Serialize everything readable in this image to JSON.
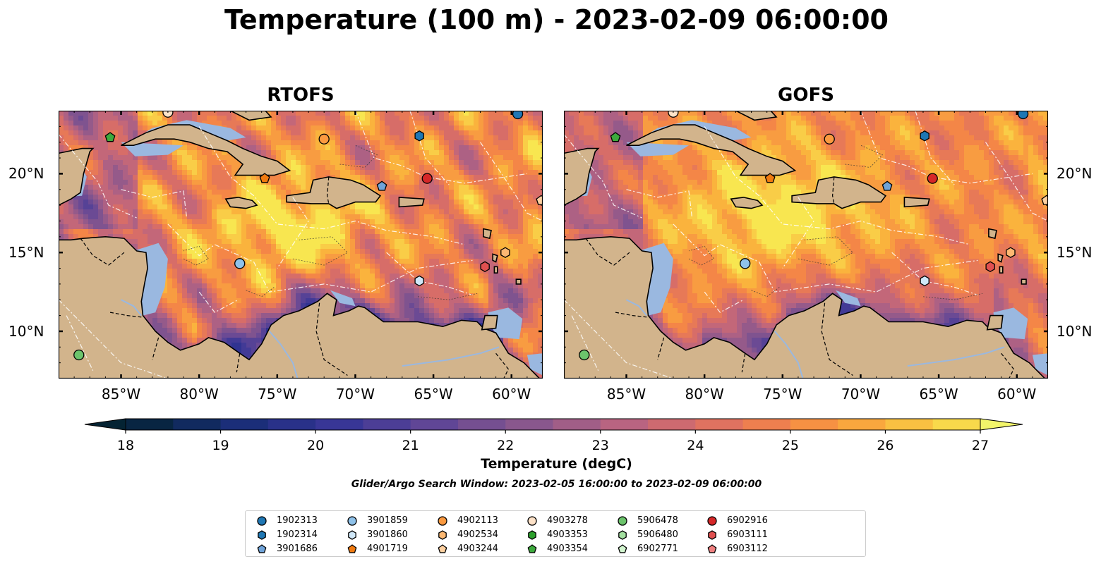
{
  "title": "Temperature (100 m) - 2023-02-09 06:00:00",
  "panels": [
    {
      "id": "rtofs",
      "title": "RTOFS"
    },
    {
      "id": "gofs",
      "title": "GOFS"
    }
  ],
  "map": {
    "lon_range": [
      -89,
      -58
    ],
    "lat_range": [
      7,
      24
    ],
    "lon_ticks": [
      "85°W",
      "80°W",
      "75°W",
      "70°W",
      "65°W",
      "60°W"
    ],
    "lat_ticks": [
      "20°N",
      "15°N",
      "10°N"
    ],
    "colors": {
      "land": "#d2b48c",
      "shallow_water": "#9ab8e0",
      "deep_water": "#0a2535",
      "coast": "#000000"
    }
  },
  "colorbar": {
    "label": "Temperature (degC)",
    "min": 18,
    "max": 27,
    "step": 0.5,
    "ticks": [
      "18",
      "19",
      "20",
      "21",
      "22",
      "23",
      "24",
      "25",
      "26",
      "27"
    ],
    "extend": "both",
    "colormap": "thermal"
  },
  "search_window": "Glider/Argo Search Window: 2023-02-05 16:00:00 to 2023-02-09 06:00:00",
  "legend": {
    "entries": [
      {
        "label": "1902313",
        "marker": "circle",
        "color": "#1f77b4"
      },
      {
        "label": "1902314",
        "marker": "hexagon",
        "color": "#1f77b4"
      },
      {
        "label": "3901686",
        "marker": "pentagon",
        "color": "#6fa3d9"
      },
      {
        "label": "3901859",
        "marker": "circle",
        "color": "#8fc2ea"
      },
      {
        "label": "3901860",
        "marker": "hexagon",
        "color": "#cfe7f8"
      },
      {
        "label": "4901719",
        "marker": "pentagon",
        "color": "#f07a10"
      },
      {
        "label": "4902113",
        "marker": "circle",
        "color": "#fb9a40"
      },
      {
        "label": "4902534",
        "marker": "hexagon",
        "color": "#fdb872"
      },
      {
        "label": "4903244",
        "marker": "pentagon",
        "color": "#fed0a0"
      },
      {
        "label": "4903278",
        "marker": "circle",
        "color": "#fde2c8"
      },
      {
        "label": "4903353",
        "marker": "hexagon",
        "color": "#2ca02c"
      },
      {
        "label": "4903354",
        "marker": "pentagon",
        "color": "#3daa3d"
      },
      {
        "label": "5906478",
        "marker": "circle",
        "color": "#6cc46c"
      },
      {
        "label": "5906480",
        "marker": "hexagon",
        "color": "#a3e0a0"
      },
      {
        "label": "6902771",
        "marker": "pentagon",
        "color": "#d2f5cf"
      },
      {
        "label": "6902916",
        "marker": "circle",
        "color": "#d62728"
      },
      {
        "label": "6903111",
        "marker": "hexagon",
        "color": "#e05050"
      },
      {
        "label": "6903112",
        "marker": "pentagon",
        "color": "#f08080"
      }
    ]
  },
  "floats": [
    {
      "id": "1902313",
      "lon": -59.6,
      "lat": 23.8
    },
    {
      "id": "1902314",
      "lon": -65.9,
      "lat": 22.4
    },
    {
      "id": "3901686",
      "lon": -68.3,
      "lat": 19.2
    },
    {
      "id": "3901859",
      "lon": -77.4,
      "lat": 14.3
    },
    {
      "id": "3901860",
      "lon": -65.9,
      "lat": 13.2
    },
    {
      "id": "4901719",
      "lon": -75.8,
      "lat": 19.7
    },
    {
      "id": "4902113",
      "lon": -72.0,
      "lat": 22.2
    },
    {
      "id": "4902534",
      "lon": -60.4,
      "lat": 15.0
    },
    {
      "id": "4903244",
      "lon": -58.1,
      "lat": 18.3
    },
    {
      "id": "4903278",
      "lon": -82.0,
      "lat": 23.9
    },
    {
      "id": "4903354",
      "lon": -85.7,
      "lat": 22.3
    },
    {
      "id": "5906478",
      "lon": -87.7,
      "lat": 8.5
    },
    {
      "id": "6902916",
      "lon": -65.4,
      "lat": 19.7
    },
    {
      "id": "6903111",
      "lon": -61.7,
      "lat": 14.1
    }
  ]
}
